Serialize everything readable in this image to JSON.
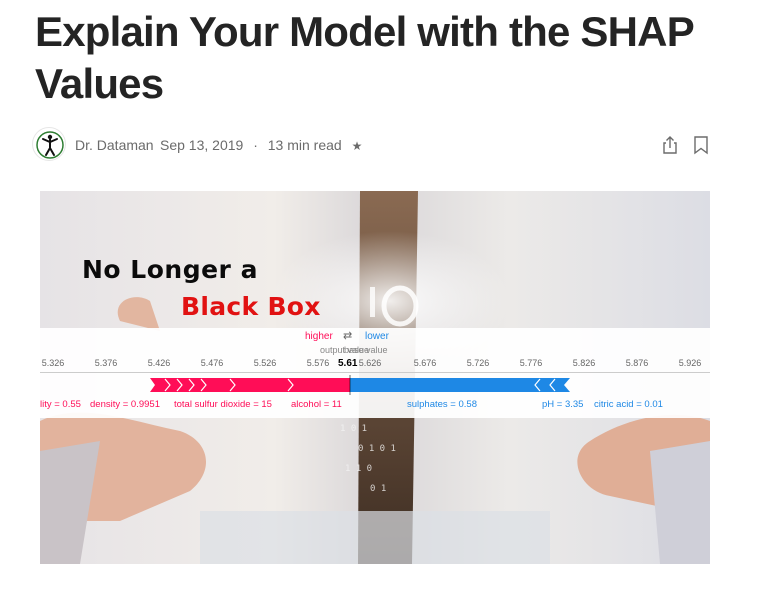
{
  "article": {
    "title": "Explain Your Model with the SHAP Values",
    "author": "Dr. Dataman",
    "date": "Sep 13, 2019",
    "separator": "·",
    "read_time": "13 min read",
    "member_icon": "star-icon"
  },
  "actions": {
    "share_icon": "share-icon",
    "bookmark_icon": "bookmark-icon"
  },
  "hero": {
    "headline_line1": "No Longer a",
    "headline_line2": "Black Box",
    "headline_line2_color": "#e11212",
    "shap_plot": {
      "higher_label": "higher",
      "lower_label": "lower",
      "arrows": "⇄",
      "output_label": "output value",
      "base_label": "base value",
      "output_value": "5.61",
      "ticks": [
        "5.326",
        "5.376",
        "5.426",
        "5.476",
        "5.526",
        "5.576",
        "5.626",
        "5.676",
        "5.726",
        "5.776",
        "5.826",
        "5.876",
        "5.926"
      ],
      "positive_color": "#ff0d57",
      "negative_color": "#1e88e5",
      "positive_features": [
        "lity = 0.55",
        "density = 0.9951",
        "total sulfur dioxide = 15",
        "alcohol = 11"
      ],
      "negative_features": [
        "sulphates = 0.58",
        "pH = 3.35",
        "citric acid = 0.01"
      ]
    }
  }
}
